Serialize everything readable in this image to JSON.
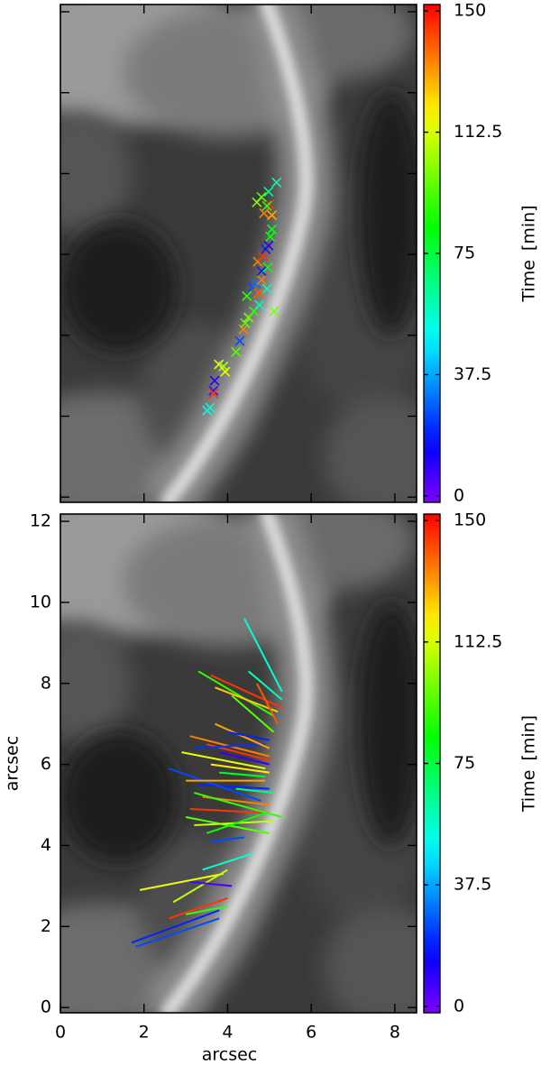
{
  "chart_data": [
    {
      "type": "scatter",
      "colormap": "rainbow",
      "clim": [
        -2,
        152
      ],
      "colorbar_label": "Time [min]",
      "colorbar_ticks": [
        0,
        37.5,
        75,
        112.5,
        150
      ],
      "xlim": [
        0,
        8.52
      ],
      "ylim": [
        -0.13,
        12.18
      ],
      "x": [
        3.51,
        3.58,
        3.66,
        3.69,
        3.66,
        3.79,
        3.9,
        3.94,
        4.2,
        4.29,
        4.38,
        4.42,
        4.5,
        4.63,
        4.76,
        5.11,
        4.46,
        4.59,
        4.68,
        4.81,
        4.74,
        4.94,
        4.72,
        4.85,
        4.81,
        4.96,
        4.91,
        4.98,
        5.02,
        5.06,
        4.87,
        5.0,
        5.06,
        4.94,
        4.81,
        4.98,
        5.17,
        4.7
      ],
      "y": [
        2.14,
        2.21,
        2.63,
        2.88,
        2.56,
        3.28,
        3.23,
        3.1,
        3.59,
        3.86,
        4.15,
        4.3,
        4.44,
        4.59,
        4.75,
        4.59,
        4.97,
        5.19,
        5.28,
        5.37,
        5.04,
        5.15,
        5.82,
        5.95,
        5.59,
        5.68,
        6.13,
        6.22,
        6.44,
        6.62,
        7.02,
        7.24,
        6.97,
        7.2,
        7.42,
        7.55,
        7.78,
        7.29
      ],
      "time": [
        50,
        55,
        5,
        10,
        145,
        115,
        105,
        115,
        95,
        25,
        135,
        95,
        100,
        90,
        60,
        100,
        90,
        25,
        30,
        135,
        140,
        60,
        135,
        145,
        20,
        85,
        20,
        10,
        85,
        80,
        135,
        145,
        130,
        90,
        95,
        65,
        60,
        100
      ]
    },
    {
      "type": "segments",
      "colormap": "rainbow",
      "clim": [
        -2,
        152
      ],
      "colorbar_label": "Time [min]",
      "colorbar_ticks": [
        0,
        37.5,
        75,
        112.5,
        150
      ],
      "x_label": "arcsec",
      "y_label": "arcsec",
      "xlim": [
        0,
        8.52
      ],
      "ylim": [
        -0.13,
        12.18
      ],
      "xticks": [
        0,
        2,
        4,
        6,
        8
      ],
      "yticks": [
        0,
        2,
        4,
        6,
        8,
        10,
        12
      ],
      "x0": [
        1.7,
        1.8,
        2.6,
        3.0,
        1.9,
        2.7,
        3.1,
        3.4,
        3.6,
        3.0,
        3.2,
        3.1,
        3.4,
        3.3,
        2.6,
        3.0,
        3.2,
        3.6,
        2.9,
        3.1,
        3.5,
        3.8,
        3.2,
        3.7,
        4.0,
        3.3,
        3.7,
        3.6,
        4.5,
        4.7,
        4.1,
        4.4,
        3.5,
        3.8,
        4.2
      ],
      "y0": [
        1.6,
        1.5,
        2.2,
        2.3,
        2.9,
        2.6,
        3.1,
        3.4,
        4.1,
        4.7,
        4.5,
        4.9,
        5.2,
        5.5,
        5.9,
        5.6,
        5.3,
        6.0,
        6.3,
        6.7,
        6.5,
        6.3,
        6.4,
        7.0,
        6.8,
        8.3,
        7.9,
        8.2,
        8.3,
        8.0,
        7.7,
        9.6,
        4.3,
        5.8,
        5.4
      ],
      "x1": [
        3.8,
        3.8,
        4.0,
        4.0,
        3.9,
        4.0,
        4.1,
        4.6,
        4.4,
        5.0,
        5.1,
        5.0,
        5.0,
        5.0,
        4.8,
        4.9,
        5.3,
        5.0,
        4.9,
        5.0,
        5.0,
        5.0,
        4.9,
        5.0,
        5.0,
        5.1,
        5.2,
        5.3,
        5.3,
        5.2,
        5.1,
        5.3,
        4.9,
        4.9,
        5.1
      ],
      "y1": [
        2.4,
        2.2,
        2.7,
        2.5,
        3.3,
        3.4,
        3.0,
        3.8,
        4.2,
        4.3,
        4.6,
        4.8,
        5.0,
        5.4,
        5.1,
        5.6,
        4.7,
        5.8,
        5.9,
        6.2,
        6.1,
        6.0,
        6.5,
        6.4,
        6.6,
        7.2,
        7.3,
        7.4,
        7.6,
        7.0,
        6.8,
        7.8,
        4.8,
        5.7,
        5.3
      ],
      "time": [
        20,
        25,
        145,
        90,
        115,
        110,
        5,
        55,
        25,
        95,
        110,
        145,
        135,
        20,
        25,
        130,
        90,
        120,
        115,
        135,
        145,
        8,
        22,
        130,
        20,
        90,
        125,
        145,
        60,
        140,
        95,
        55,
        85,
        80,
        65
      ]
    }
  ]
}
